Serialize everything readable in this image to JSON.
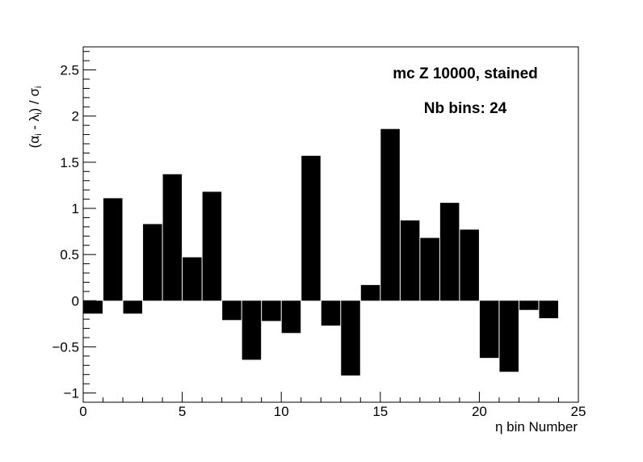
{
  "chart_data": {
    "type": "bar",
    "title": "",
    "xlabel": "η bin Number",
    "ylabel_parts": [
      "(α",
      "i",
      " - λ",
      "i",
      ") / σ",
      "i"
    ],
    "xlim": [
      0,
      25
    ],
    "ylim": [
      -1.1,
      2.75
    ],
    "x_ticks": [
      0,
      5,
      10,
      15,
      20,
      25
    ],
    "x_tick_labels": [
      "0",
      "5",
      "10",
      "15",
      "20",
      "25"
    ],
    "y_ticks": [
      -1,
      -0.5,
      0,
      0.5,
      1,
      1.5,
      2,
      2.5
    ],
    "y_tick_labels": [
      "−1",
      "−0.5",
      "0",
      "0.5",
      "1",
      "1.5",
      "2",
      "2.5"
    ],
    "bin_width": 1,
    "x": [
      0,
      1,
      2,
      3,
      4,
      5,
      6,
      7,
      8,
      9,
      10,
      11,
      12,
      13,
      14,
      15,
      16,
      17,
      18,
      19,
      20,
      21,
      22,
      23
    ],
    "values": [
      -0.14,
      1.11,
      -0.14,
      0.83,
      1.37,
      0.47,
      1.18,
      -0.21,
      -0.64,
      -0.22,
      -0.35,
      1.57,
      -0.27,
      -0.81,
      0.17,
      1.86,
      0.87,
      0.68,
      1.06,
      0.77,
      -0.62,
      -0.77,
      -0.1,
      -0.19
    ],
    "bar_color": "#000000",
    "grid": false,
    "annotations": [
      "mc Z 10000, stained",
      "Nb bins: 24"
    ]
  }
}
